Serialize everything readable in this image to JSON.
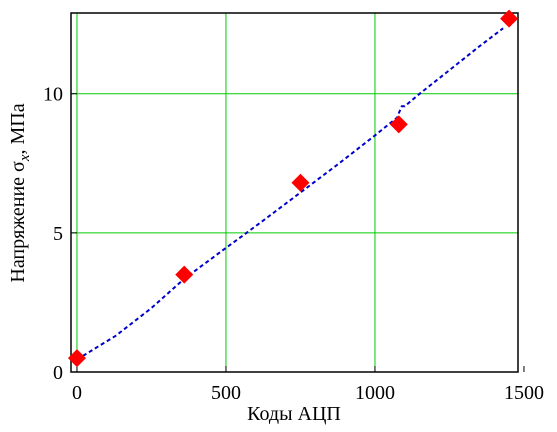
{
  "chart_data": {
    "type": "scatter",
    "xlabel": "Коды АЦП",
    "ylabel_prefix": "Напряжение σ",
    "ylabel_sub": "x",
    "ylabel_suffix": ", МПа",
    "xlim": [
      -20,
      1480
    ],
    "ylim": [
      0,
      12.9
    ],
    "x_ticks": [
      0,
      500,
      1000,
      1500
    ],
    "y_ticks": [
      0,
      5,
      10
    ],
    "grid": true,
    "grid_color": "#00cc00",
    "series": [
      {
        "kind": "points",
        "marker": "diamond",
        "color": "#ff0000",
        "x": [
          0,
          360,
          750,
          1080,
          1450
        ],
        "y": [
          0.5,
          3.5,
          6.8,
          8.9,
          12.7
        ]
      },
      {
        "kind": "line",
        "style": "dashed",
        "color": "#0000cc",
        "x": [
          0,
          130,
          250,
          360,
          480,
          620,
          750,
          880,
          1000,
          1075,
          1080,
          1090,
          1100,
          1150,
          1250,
          1350,
          1430
        ],
        "y": [
          0.45,
          1.3,
          2.3,
          3.35,
          4.3,
          5.4,
          6.45,
          7.5,
          8.5,
          9.15,
          9.3,
          9.55,
          9.55,
          10.0,
          10.85,
          11.7,
          12.35
        ]
      }
    ]
  }
}
